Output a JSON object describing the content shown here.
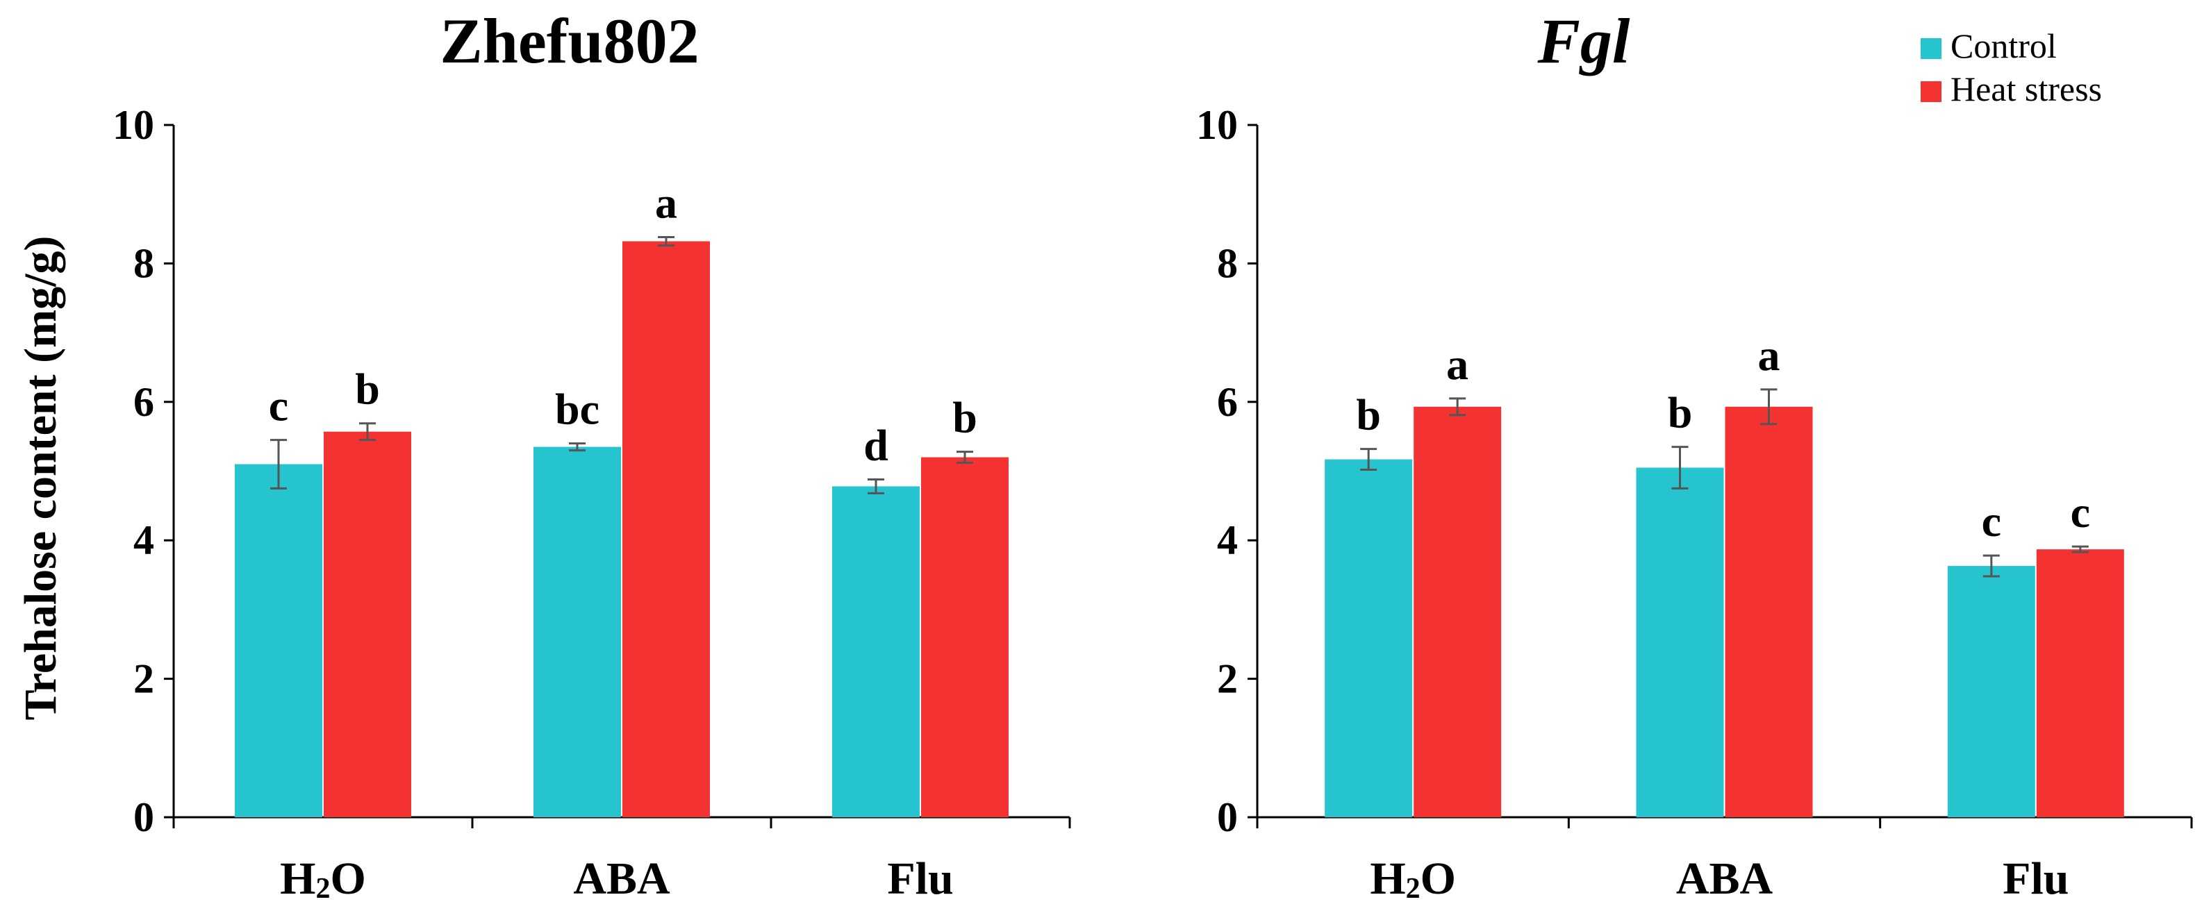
{
  "chart_data": [
    {
      "type": "bar",
      "title": "Zhefu802",
      "title_italic": false,
      "ylabel": "Trehalose content (mg/g)",
      "xlabel": "",
      "ylim": [
        0,
        10
      ],
      "yticks": [
        0,
        2,
        4,
        6,
        8,
        10
      ],
      "categories": [
        "H2O",
        "ABA",
        "Flu"
      ],
      "category_labels": [
        {
          "main": "H",
          "sub": "2",
          "rest": "O"
        },
        {
          "main": "ABA",
          "sub": "",
          "rest": ""
        },
        {
          "main": "Flu",
          "sub": "",
          "rest": ""
        }
      ],
      "series": [
        {
          "name": "Control",
          "color": "#26C4CF",
          "values": [
            5.1,
            5.35,
            4.78
          ],
          "errors": [
            0.35,
            0.05,
            0.1
          ],
          "letters": [
            "c",
            "bc",
            "d"
          ]
        },
        {
          "name": "Heat stress",
          "color": "#F43232",
          "values": [
            5.57,
            8.32,
            5.2
          ],
          "errors": [
            0.12,
            0.06,
            0.08
          ],
          "letters": [
            "b",
            "a",
            "b"
          ]
        }
      ]
    },
    {
      "type": "bar",
      "title": "Fgl",
      "title_italic": true,
      "ylabel": "",
      "xlabel": "",
      "ylim": [
        0,
        10
      ],
      "yticks": [
        0,
        2,
        4,
        6,
        8,
        10
      ],
      "categories": [
        "H2O",
        "ABA",
        "Flu"
      ],
      "category_labels": [
        {
          "main": "H",
          "sub": "2",
          "rest": "O"
        },
        {
          "main": "ABA",
          "sub": "",
          "rest": ""
        },
        {
          "main": "Flu",
          "sub": "",
          "rest": ""
        }
      ],
      "series": [
        {
          "name": "Control",
          "color": "#26C4CF",
          "values": [
            5.17,
            5.05,
            3.63
          ],
          "errors": [
            0.15,
            0.3,
            0.15
          ],
          "letters": [
            "b",
            "b",
            "c"
          ]
        },
        {
          "name": "Heat stress",
          "color": "#F43232",
          "values": [
            5.93,
            5.93,
            3.87
          ],
          "errors": [
            0.12,
            0.25,
            0.04
          ],
          "letters": [
            "a",
            "a",
            "c"
          ]
        }
      ]
    }
  ],
  "legend": {
    "placement": "top-right",
    "items": [
      {
        "label": "Control",
        "color": "#26C4CF"
      },
      {
        "label": "Heat stress",
        "color": "#F43232"
      }
    ]
  }
}
